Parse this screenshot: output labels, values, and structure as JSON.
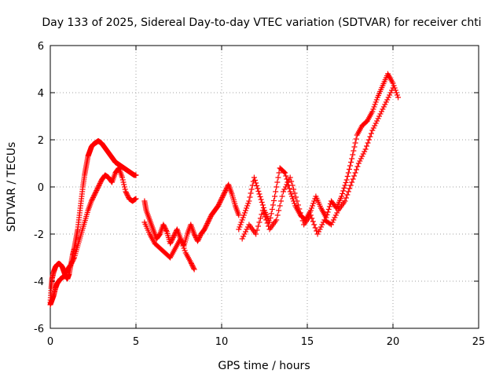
{
  "chart_data": {
    "type": "scatter",
    "title": "Day 133 of 2025, Sidereal Day-to-day VTEC variation (SDTVAR) for receiver chti",
    "xlabel": "GPS time / hours",
    "ylabel": "SDTVAR / TECUs",
    "xlim": [
      0,
      25
    ],
    "ylim": [
      -6,
      6
    ],
    "x_ticks": [
      0,
      5,
      10,
      15,
      20,
      25
    ],
    "y_ticks": [
      -6,
      -4,
      -2,
      0,
      2,
      4,
      6
    ],
    "grid": true,
    "marker": "+",
    "series_color": "#ff0000",
    "series": [
      {
        "name": "SDTVAR",
        "segments": [
          {
            "x": [
              0.0,
              0.05,
              0.1,
              0.2,
              0.3,
              0.4,
              0.5,
              0.6,
              0.7,
              0.8,
              0.9,
              1.0,
              1.1,
              1.2,
              1.3,
              1.4,
              1.5,
              1.6,
              1.7,
              1.8,
              1.9,
              2.0,
              2.1,
              2.2,
              2.3,
              2.4,
              2.5,
              2.6,
              2.7,
              2.8,
              2.9,
              3.0,
              3.1,
              3.2,
              3.3,
              3.4,
              3.5,
              3.6,
              3.7,
              3.8,
              3.9,
              4.0,
              4.1,
              4.2,
              4.3,
              4.4,
              4.5,
              4.6,
              4.7,
              4.8,
              4.9,
              5.0
            ],
            "y": [
              -4.9,
              -4.3,
              -3.9,
              -3.6,
              -3.4,
              -3.3,
              -3.25,
              -3.3,
              -3.4,
              -3.6,
              -3.8,
              -3.9,
              -3.7,
              -3.3,
              -2.9,
              -2.6,
              -2.2,
              -1.8,
              -1.2,
              -0.6,
              0.0,
              0.5,
              0.9,
              1.3,
              1.5,
              1.7,
              1.8,
              1.85,
              1.9,
              1.95,
              1.9,
              1.85,
              1.75,
              1.65,
              1.55,
              1.45,
              1.35,
              1.25,
              1.15,
              1.05,
              1.0,
              0.95,
              0.9,
              0.85,
              0.8,
              0.75,
              0.7,
              0.65,
              0.6,
              0.55,
              0.5,
              0.5
            ]
          },
          {
            "x": [
              0.0,
              0.1,
              0.2,
              0.3,
              0.4,
              0.5,
              0.6,
              0.8,
              1.0,
              1.2,
              1.4,
              1.6,
              1.8,
              2.0,
              2.2,
              2.4,
              2.6,
              2.8,
              3.0,
              3.2,
              3.4,
              3.6,
              3.8,
              4.0,
              4.2,
              4.4,
              4.6,
              4.8,
              5.0
            ],
            "y": [
              -5.0,
              -4.8,
              -4.6,
              -4.3,
              -4.1,
              -4.0,
              -3.9,
              -3.8,
              -3.5,
              -3.3,
              -3.0,
              -2.5,
              -2.0,
              -1.5,
              -1.0,
              -0.6,
              -0.3,
              0.0,
              0.3,
              0.5,
              0.4,
              0.2,
              0.6,
              0.8,
              0.4,
              -0.2,
              -0.5,
              -0.6,
              -0.5
            ]
          },
          {
            "x": [
              5.5,
              5.6,
              5.8,
              6.0,
              6.2,
              6.4,
              6.6,
              6.8,
              7.0,
              7.2,
              7.4,
              7.6,
              7.8,
              8.0,
              8.2,
              8.4,
              8.6,
              8.8,
              9.0,
              9.2,
              9.4,
              9.6,
              9.8,
              10.0,
              10.2,
              10.4,
              10.6,
              10.8,
              11.0
            ],
            "y": [
              -0.6,
              -1.0,
              -1.4,
              -1.8,
              -2.2,
              -2.0,
              -1.6,
              -1.9,
              -2.4,
              -2.1,
              -1.8,
              -2.2,
              -2.5,
              -2.0,
              -1.6,
              -2.0,
              -2.3,
              -2.0,
              -1.8,
              -1.5,
              -1.2,
              -1.0,
              -0.8,
              -0.5,
              -0.2,
              0.1,
              -0.3,
              -0.8,
              -1.2
            ]
          },
          {
            "x": [
              5.5,
              5.8,
              6.1,
              6.4,
              6.7,
              7.0,
              7.3,
              7.6,
              7.9,
              8.2,
              8.4
            ],
            "y": [
              -1.5,
              -2.0,
              -2.4,
              -2.6,
              -2.8,
              -3.0,
              -2.6,
              -2.2,
              -2.8,
              -3.2,
              -3.5
            ]
          },
          {
            "x": [
              11.0,
              11.3,
              11.6,
              11.9,
              12.2,
              12.5,
              12.8,
              13.1,
              13.4,
              13.7,
              14.0,
              14.3,
              14.6,
              14.9,
              15.2,
              15.5,
              15.8,
              16.1,
              16.4,
              16.7,
              17.0,
              17.3,
              17.6,
              17.9,
              18.2,
              18.5,
              18.8,
              19.1,
              19.4,
              19.7,
              20.0,
              20.3
            ],
            "y": [
              -1.8,
              -1.2,
              -0.6,
              0.4,
              -0.3,
              -1.0,
              -1.5,
              -0.4,
              0.8,
              0.6,
              -0.2,
              -0.8,
              -1.2,
              -1.4,
              -1.0,
              -0.4,
              -0.9,
              -1.3,
              -0.6,
              -0.9,
              -0.4,
              0.3,
              1.2,
              2.2,
              2.6,
              2.8,
              3.2,
              3.8,
              4.3,
              4.8,
              4.4,
              3.8
            ]
          },
          {
            "x": [
              11.2,
              11.6,
              12.0,
              12.4,
              12.8,
              13.2,
              13.6,
              14.0,
              14.4,
              14.8,
              15.2,
              15.6,
              16.0,
              16.4,
              16.8,
              17.2,
              17.6,
              18.0,
              18.4,
              18.8,
              19.2,
              19.6,
              20.0
            ],
            "y": [
              -2.2,
              -1.6,
              -2.0,
              -1.0,
              -1.8,
              -1.4,
              -0.2,
              0.4,
              -0.6,
              -1.6,
              -1.2,
              -2.0,
              -1.4,
              -1.6,
              -1.0,
              -0.6,
              0.2,
              1.0,
              1.6,
              2.4,
              3.0,
              3.6,
              4.2
            ]
          }
        ]
      }
    ]
  }
}
